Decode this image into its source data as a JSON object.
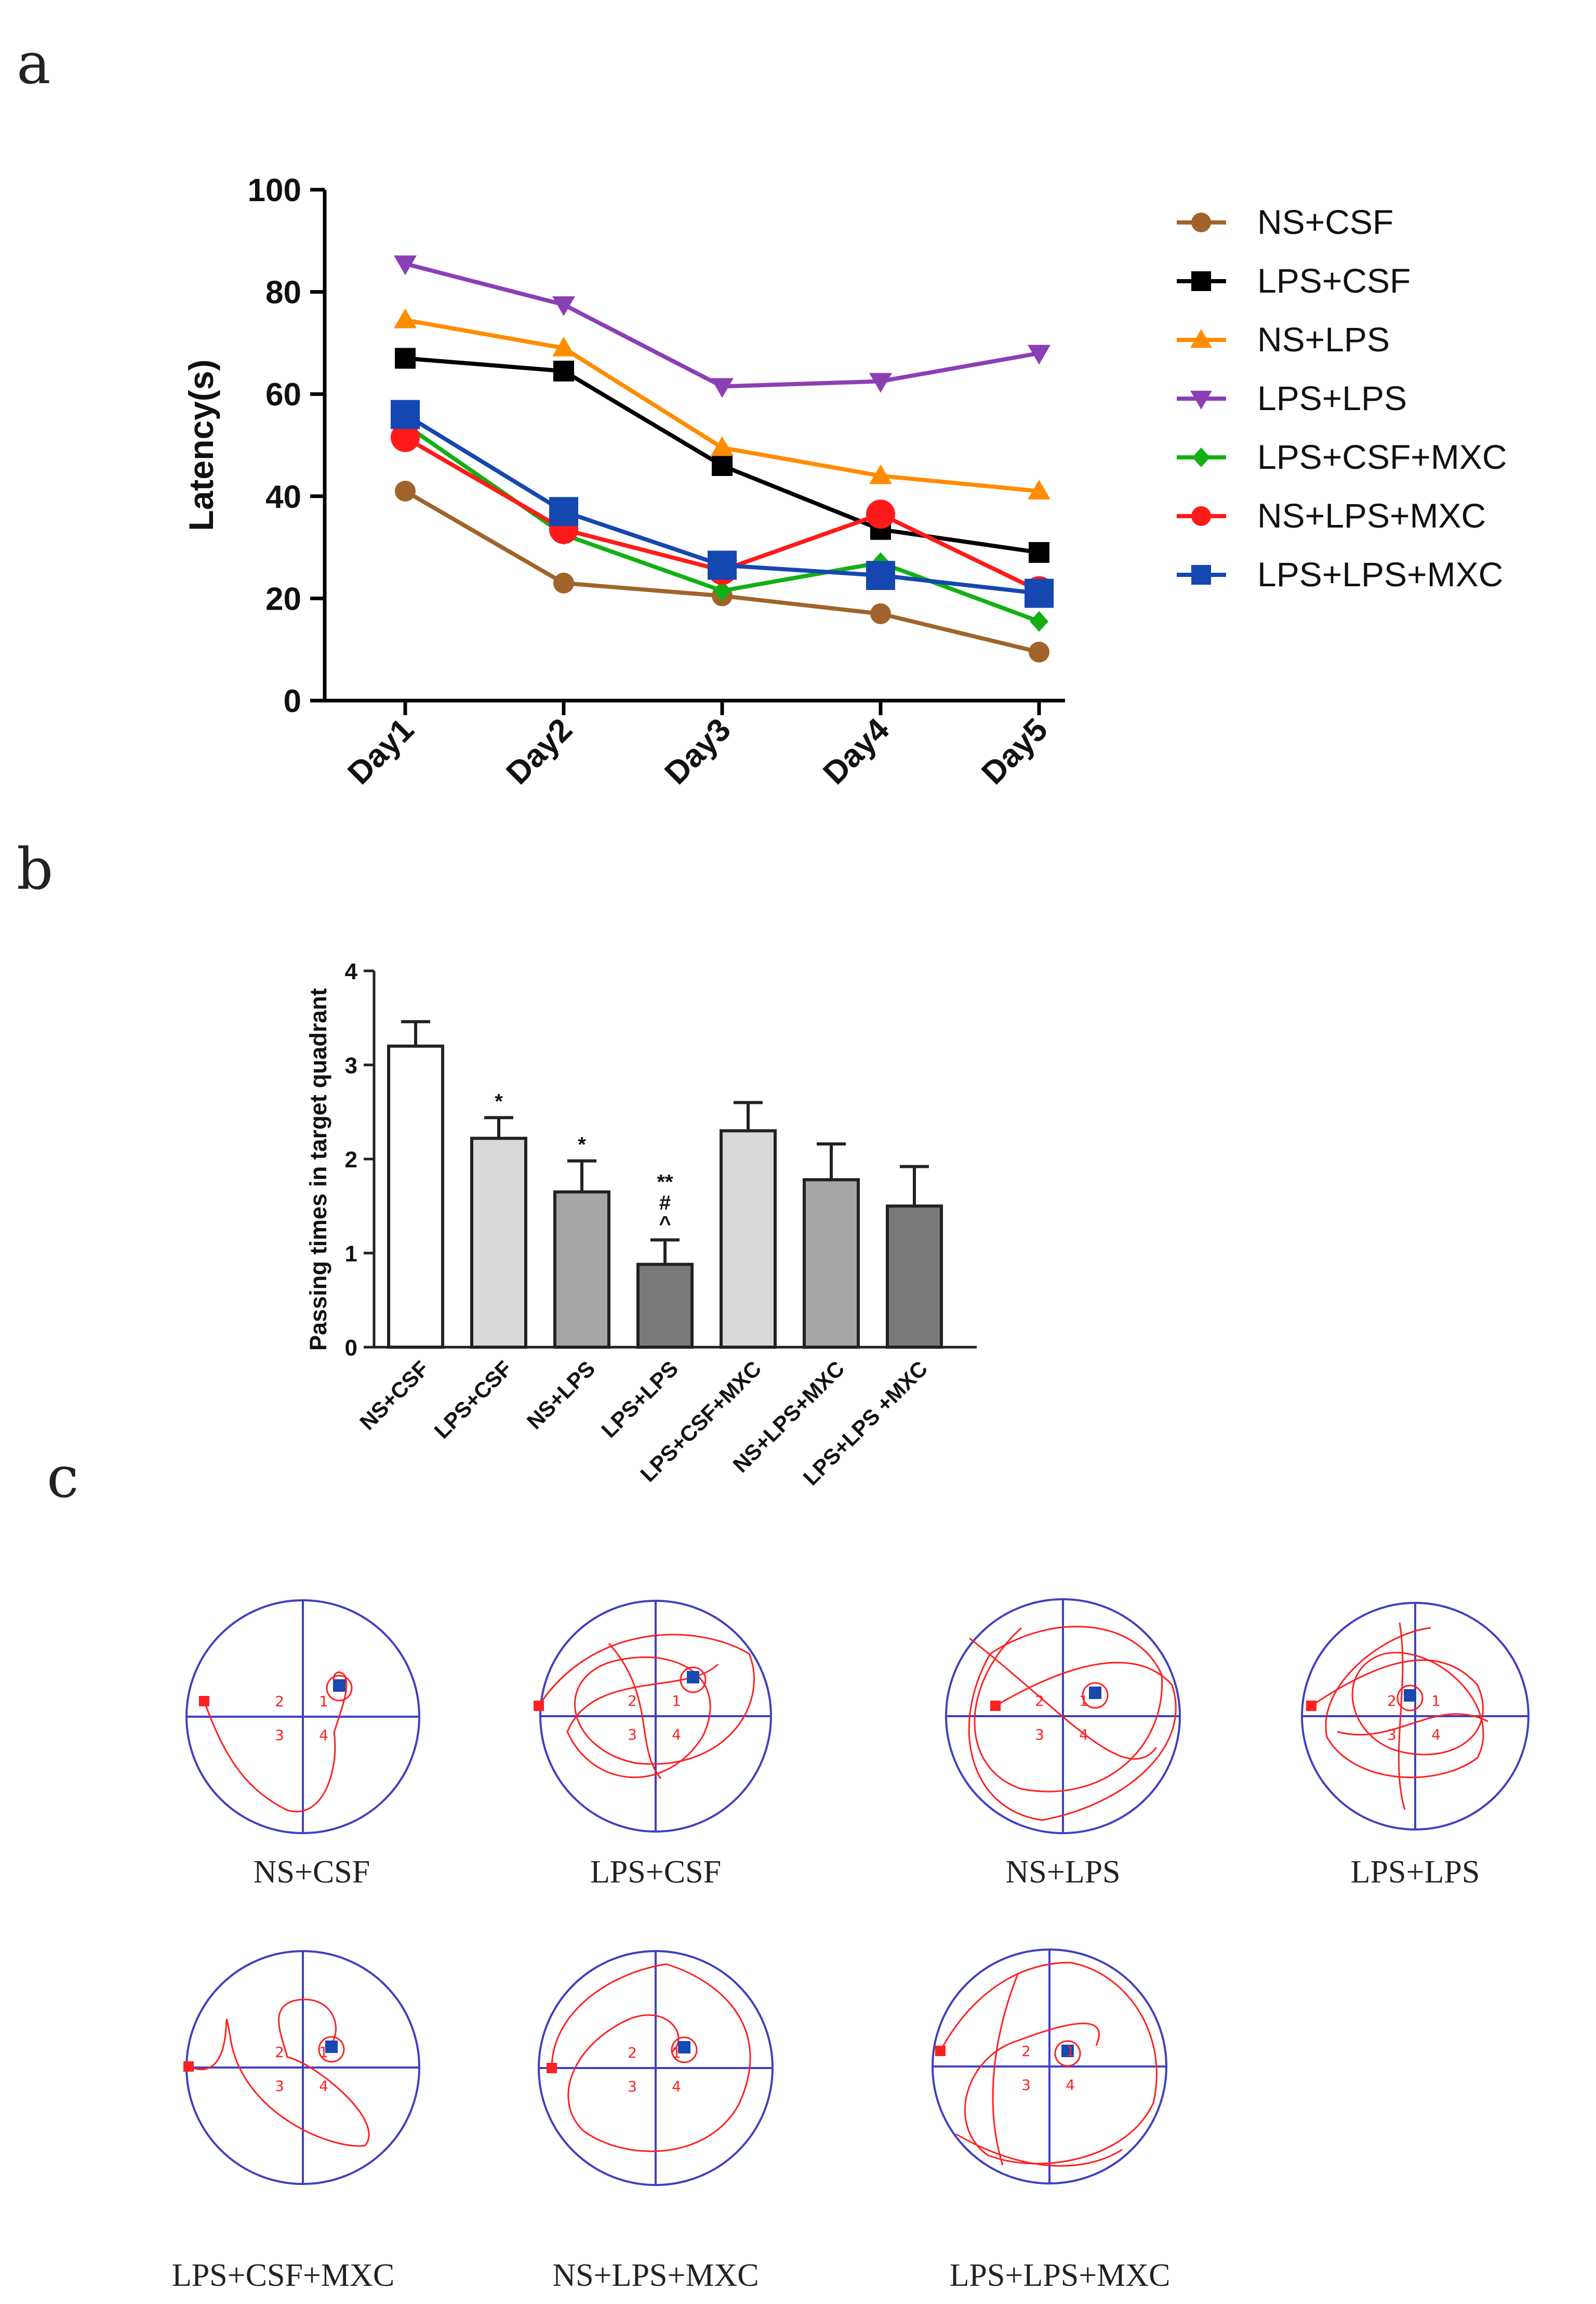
{
  "panels": {
    "a": {
      "letter": "a"
    },
    "b": {
      "letter": "b"
    },
    "c": {
      "letter": "c"
    }
  },
  "chart_data": [
    {
      "type": "line",
      "panel": "a",
      "title": "",
      "xlabel": "",
      "ylabel": "Latency(s)",
      "categories": [
        "Day1",
        "Day2",
        "Day3",
        "Day4",
        "Day5"
      ],
      "ylim": [
        0,
        100
      ],
      "yticks": [
        "0",
        "20",
        "40",
        "60",
        "80",
        "100"
      ],
      "legend_position": "right",
      "series": [
        {
          "name": "NS+CSF",
          "color": "#a0642a",
          "marker": "circle",
          "values": [
            41,
            23,
            20.5,
            17,
            9.5
          ]
        },
        {
          "name": "LPS+CSF",
          "color": "#000000",
          "marker": "square",
          "values": [
            67,
            64.5,
            46,
            33.5,
            29
          ]
        },
        {
          "name": "NS+LPS",
          "color": "#ff8c00",
          "marker": "triangle-up",
          "values": [
            74.5,
            69,
            49.5,
            44,
            41
          ]
        },
        {
          "name": "LPS+LPS",
          "color": "#8b3fb5",
          "marker": "triangle-down",
          "values": [
            85.5,
            77.5,
            61.5,
            62.5,
            68
          ]
        },
        {
          "name": "LPS+CSF+MXC",
          "color": "#13b013",
          "marker": "diamond",
          "values": [
            54,
            32.5,
            21.5,
            27,
            15.5
          ]
        },
        {
          "name": "NS+LPS+MXC",
          "color": "#ff1a1a",
          "marker": "circle",
          "values": [
            51.5,
            33.5,
            25.5,
            36.5,
            21.5
          ]
        },
        {
          "name": "LPS+LPS+MXC",
          "color": "#1547b0",
          "marker": "square",
          "values": [
            56,
            37,
            26.5,
            24.5,
            21
          ]
        }
      ]
    },
    {
      "type": "bar",
      "panel": "b",
      "title": "",
      "xlabel": "",
      "ylabel": "Passing times in target quadrant",
      "categories": [
        "NS+CSF",
        "LPS+CSF",
        "NS+LPS",
        "LPS+LPS",
        "LPS+CSF+MXC",
        "NS+LPS+MXC",
        "LPS+LPS +MXC"
      ],
      "values": [
        3.2,
        2.22,
        1.65,
        0.88,
        2.3,
        1.78,
        1.5
      ],
      "errors": [
        0.26,
        0.22,
        0.33,
        0.26,
        0.3,
        0.38,
        0.42
      ],
      "fills": [
        "#ffffff",
        "#d9d9d9",
        "#a6a6a6",
        "#7a7a7a",
        "#d9d9d9",
        "#a6a6a6",
        "#7a7a7a"
      ],
      "annotations": [
        "",
        "*",
        "*",
        "**\n#\n^",
        "",
        "",
        ""
      ],
      "ylim": [
        0,
        4
      ],
      "yticks": [
        "0",
        "1",
        "2",
        "3",
        "4"
      ]
    }
  ],
  "tracks": {
    "quadrant_labels": [
      "1",
      "2",
      "3",
      "4"
    ],
    "items": [
      {
        "name": "NS+CSF"
      },
      {
        "name": "LPS+CSF"
      },
      {
        "name": "NS+LPS"
      },
      {
        "name": "LPS+LPS"
      },
      {
        "name": "LPS+CSF+MXC"
      },
      {
        "name": "NS+LPS+MXC"
      },
      {
        "name": "LPS+LPS+MXC"
      }
    ]
  }
}
